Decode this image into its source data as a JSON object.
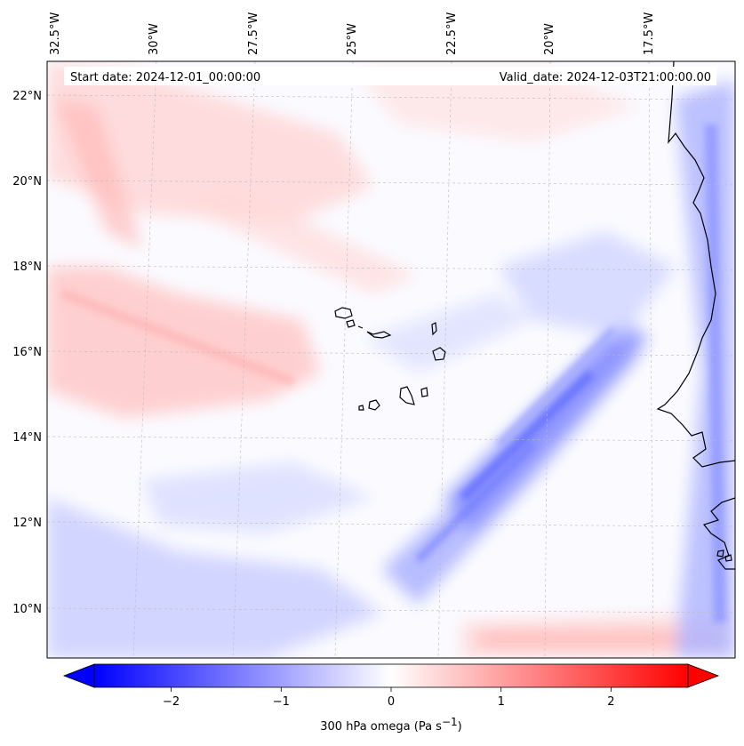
{
  "map": {
    "start_label": "Start date: 2024-12-01_00:00:00",
    "valid_label": "Valid_date: 2024-12-03T21:00:00.00",
    "lon_ticks": [
      "32.5°W",
      "30°W",
      "27.5°W",
      "25°W",
      "22.5°W",
      "20°W",
      "17.5°W"
    ],
    "lat_ticks": [
      "22°N",
      "20°N",
      "18°N",
      "16°N",
      "14°N",
      "12°N",
      "10°N"
    ]
  },
  "colorbar": {
    "label_main": "300 hPa omega (Pa s",
    "label_sup": "−1",
    "label_close": ")",
    "ticks": [
      "−2",
      "−1",
      "0",
      "1",
      "2"
    ],
    "min": -2.7,
    "max": 2.7,
    "tick_values": [
      -2,
      -1,
      0,
      1,
      2
    ]
  },
  "colors": {
    "negative": "#0000ff",
    "positive": "#ff0000",
    "neutral": "#ffffff",
    "coast": "#000000",
    "grid": "#bbbbbb"
  }
}
